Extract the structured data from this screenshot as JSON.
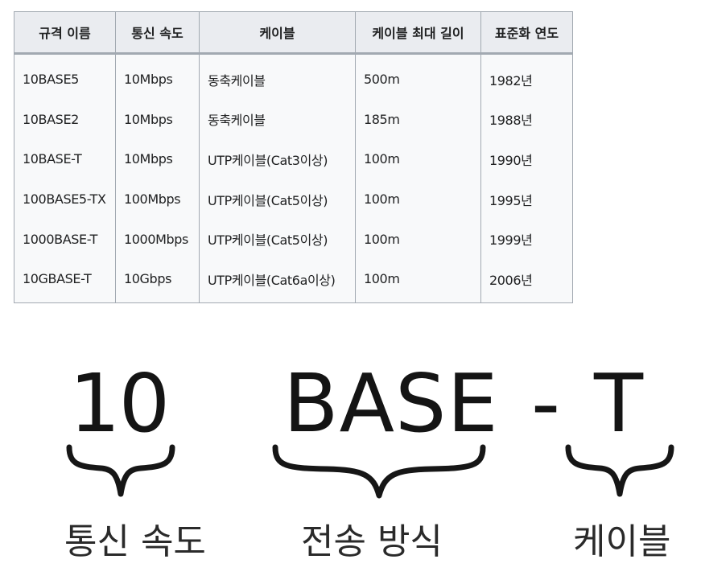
{
  "table": {
    "headers": [
      "규격 이름",
      "통신 속도",
      "케이블",
      "케이블 최대 길이",
      "표준화 연도"
    ],
    "rows": [
      [
        "10BASE5",
        "10Mbps",
        "동축케이블",
        "500m",
        "1982년"
      ],
      [
        "10BASE2",
        "10Mbps",
        "동축케이블",
        "185m",
        "1988년"
      ],
      [
        "10BASE-T",
        "10Mbps",
        "UTP케이블(Cat3이상)",
        "100m",
        "1990년"
      ],
      [
        "100BASE5-TX",
        "100Mbps",
        "UTP케이블(Cat5이상)",
        "100m",
        "1995년"
      ],
      [
        "1000BASE-T",
        "1000Mbps",
        "UTP케이블(Cat5이상)",
        "100m",
        "1999년"
      ],
      [
        "10GBASE-T",
        "10Gbps",
        "UTP케이블(Cat6a이상)",
        "100m",
        "2006년"
      ]
    ]
  },
  "diagram": {
    "speed_part": "10",
    "base_part": "BASE",
    "dash": "-",
    "cable_part": "T",
    "speed_caption": "통신 속도",
    "base_caption": "전송 방식",
    "cable_caption": "케이블"
  }
}
